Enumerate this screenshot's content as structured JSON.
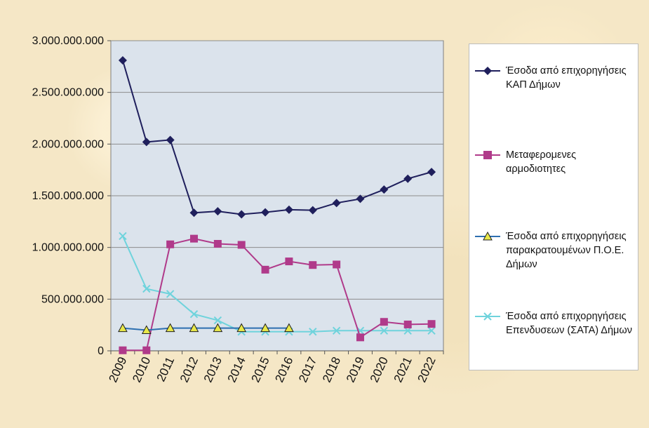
{
  "chart_data": {
    "type": "line",
    "x": [
      "2009",
      "2010",
      "2011",
      "2012",
      "2013",
      "2014",
      "2015",
      "2016",
      "2017",
      "2018",
      "2019",
      "2020",
      "2021",
      "2022"
    ],
    "ylim": [
      0,
      3000000000
    ],
    "yticks": [
      0,
      500000000,
      1000000000,
      1500000000,
      2000000000,
      2500000000,
      3000000000
    ],
    "ytick_labels": [
      "0",
      "500.000.000",
      "1.000.000.000",
      "1.500.000.000",
      "2.000.000.000",
      "2.500.000.000",
      "3.000.000.000"
    ],
    "grid": "horizontal",
    "legend_position": "right",
    "plot_background": "#dbe3ec",
    "series": [
      {
        "name": "Έσοδα από επιχορηγήσεις ΚΑΠ Δήμων",
        "color": "#1f1f5c",
        "marker": "diamond",
        "values": [
          2810000000,
          2020000000,
          2040000000,
          1335000000,
          1350000000,
          1320000000,
          1340000000,
          1365000000,
          1360000000,
          1430000000,
          1470000000,
          1560000000,
          1665000000,
          1730000000
        ]
      },
      {
        "name": "Μεταφερομενες αρμοδιοτητες",
        "color": "#b03a8a",
        "marker": "square",
        "values": [
          5000000,
          5000000,
          1030000000,
          1085000000,
          1035000000,
          1025000000,
          785000000,
          865000000,
          830000000,
          835000000,
          130000000,
          280000000,
          255000000,
          260000000
        ]
      },
      {
        "name": "Έσοδα από επιχορηγήσεις παρακρατουμένων Π.Ο.Ε. Δήμων",
        "color": "#2d6fb0",
        "marker": "triangle",
        "values": [
          220000000,
          200000000,
          220000000,
          220000000,
          220000000,
          220000000,
          220000000,
          220000000,
          null,
          null,
          null,
          null,
          null,
          null
        ]
      },
      {
        "name": "Έσοδα από επιχορηγήσεις Επενδυσεων (ΣΑΤΑ) Δήμων",
        "color": "#6fd3dc",
        "marker": "x",
        "values": [
          1110000000,
          600000000,
          550000000,
          355000000,
          295000000,
          185000000,
          185000000,
          185000000,
          185000000,
          195000000,
          195000000,
          195000000,
          195000000,
          195000000
        ]
      }
    ]
  }
}
